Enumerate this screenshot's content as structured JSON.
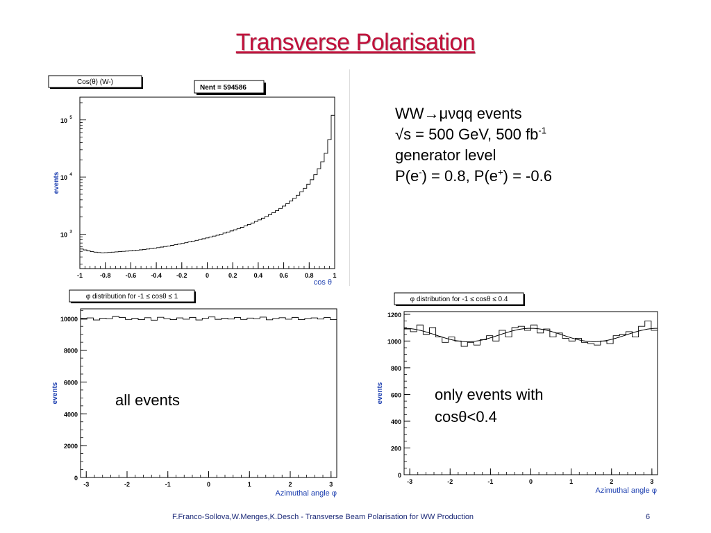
{
  "slide": {
    "title": "Transverse Polarisation",
    "info_lines": [
      {
        "parts": [
          {
            "t": "WW"
          },
          {
            "t": "→"
          },
          {
            "t": "μν"
          },
          {
            "t": "qq events"
          }
        ]
      },
      {
        "parts": [
          {
            "t": "√s = 500 GeV, 500 fb"
          },
          {
            "t": "-1",
            "sup": true
          }
        ]
      },
      {
        "parts": [
          {
            "t": "generator level"
          }
        ]
      },
      {
        "parts": [
          {
            "t": "P(e"
          },
          {
            "t": "-",
            "sup": true
          },
          {
            "t": ") = 0.8, P(e"
          },
          {
            "t": "+",
            "sup": true
          },
          {
            "t": ") = -0.6"
          }
        ]
      }
    ],
    "label_all": "all events",
    "label_restricted_1": "only events with",
    "label_restricted_2": "cosθ<0.4",
    "footer": "F.Franco-Sollova,W.Menges,K.Desch - Transverse Beam Polarisation for WW Production",
    "page_number": "6"
  },
  "chart_data": [
    {
      "id": "costheta",
      "type": "histogram",
      "title": "Cos(θ) (W-)",
      "stats_box": "Nent = 594586",
      "xlabel": "cos θ",
      "ylabel": "events",
      "ylog": true,
      "xlim": [
        -1,
        1
      ],
      "ylim": [
        250,
        250000
      ],
      "xticks": [
        -1,
        -0.8,
        -0.6,
        -0.4,
        -0.2,
        0,
        0.2,
        0.4,
        0.6,
        0.8,
        1
      ],
      "xtick_labels": [
        "-1",
        "-0.8",
        "-0.6",
        "-0.4",
        "-0.2",
        "0",
        "0.2",
        "0.4",
        "0.6",
        "0.8",
        "1"
      ],
      "yticks": [
        1000,
        10000,
        100000
      ],
      "ytick_labels": [
        "10",
        "10",
        "10"
      ],
      "ytick_exponents": [
        "3",
        "4",
        "5"
      ],
      "bins_x": [
        -1,
        1
      ],
      "values": [
        550,
        530,
        510,
        495,
        485,
        478,
        472,
        475,
        480,
        485,
        490,
        495,
        500,
        505,
        510,
        518,
        525,
        532,
        540,
        550,
        560,
        570,
        582,
        595,
        608,
        622,
        638,
        655,
        672,
        690,
        710,
        732,
        755,
        780,
        805,
        832,
        860,
        892,
        925,
        960,
        1000,
        1045,
        1090,
        1140,
        1195,
        1255,
        1320,
        1395,
        1480,
        1570,
        1670,
        1780,
        1905,
        2040,
        2200,
        2380,
        2580,
        2820,
        3100,
        3420,
        3800,
        4250,
        4800,
        5500,
        6350,
        7500,
        9000,
        11000,
        14000,
        18500,
        26000,
        45000,
        120000
      ]
    },
    {
      "id": "phi_all",
      "type": "histogram",
      "title": "φ distribution for  -1 ≤ cosθ ≤ 1",
      "xlabel": "Azimuthal angle φ",
      "ylabel": "events",
      "xlim": [
        -3.14,
        3.14
      ],
      "ylim": [
        0,
        10600
      ],
      "xticks": [
        -3,
        -2,
        -1,
        0,
        1,
        2,
        3
      ],
      "yticks": [
        0,
        2000,
        4000,
        6000,
        8000,
        10000
      ],
      "bins_x": [
        -3.14,
        3.14
      ],
      "values": [
        9950,
        10030,
        9900,
        10010,
        9980,
        10120,
        10060,
        9930,
        10000,
        9920,
        10040,
        9890,
        10070,
        9980,
        9920,
        10030,
        9950,
        10060,
        9900,
        10010,
        10090,
        9940,
        10000,
        9960,
        10050,
        9930,
        10020,
        9980,
        10080,
        9910,
        9990,
        10040,
        9950,
        10060,
        9920,
        9990,
        10030,
        9960,
        10050,
        9920
      ]
    },
    {
      "id": "phi_restricted",
      "type": "histogram",
      "title": "φ distribution for  -1  ≤ cosθ ≤ 0.4",
      "xlabel": "Azimuthal angle  φ",
      "ylabel": "events",
      "xlim": [
        -3.14,
        3.14
      ],
      "ylim": [
        0,
        1220
      ],
      "xticks": [
        -3,
        -2,
        -1,
        0,
        1,
        2,
        3
      ],
      "yticks": [
        0,
        200,
        400,
        600,
        800,
        1000,
        1200
      ],
      "bins_x": [
        -3.14,
        3.14
      ],
      "values": [
        1090,
        1070,
        1120,
        1050,
        1100,
        1030,
        990,
        1030,
        1000,
        960,
        990,
        970,
        1010,
        1040,
        1000,
        1080,
        1030,
        1100,
        1110,
        1080,
        1120,
        1060,
        1090,
        1030,
        1060,
        1020,
        1000,
        1020,
        990,
        980,
        970,
        1000,
        980,
        1040,
        1050,
        1070,
        1030,
        1110,
        1150,
        1080
      ],
      "fit": {
        "type": "line",
        "mean": 1045,
        "amplitude": 50,
        "harmonic": 2,
        "phase": 0
      }
    }
  ]
}
